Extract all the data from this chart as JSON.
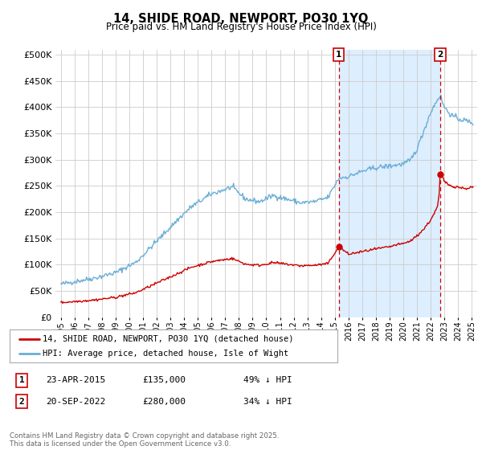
{
  "title": "14, SHIDE ROAD, NEWPORT, PO30 1YQ",
  "subtitle": "Price paid vs. HM Land Registry's House Price Index (HPI)",
  "hpi_color": "#6baed6",
  "price_color": "#cc0000",
  "dashed_line_color": "#cc0000",
  "shade_color": "#ddeeff",
  "background_color": "#ffffff",
  "grid_color": "#cccccc",
  "ylim_max": 500000,
  "yticks": [
    0,
    50000,
    100000,
    150000,
    200000,
    250000,
    300000,
    350000,
    400000,
    450000,
    500000
  ],
  "transaction1": {
    "date": "23-APR-2015",
    "price": 135000,
    "hpi_pct": "49% ↓ HPI",
    "year": 2015.3
  },
  "transaction2": {
    "date": "20-SEP-2022",
    "price": 280000,
    "hpi_pct": "34% ↓ HPI",
    "year": 2022.7
  },
  "legend_label1": "14, SHIDE ROAD, NEWPORT, PO30 1YQ (detached house)",
  "legend_label2": "HPI: Average price, detached house, Isle of Wight",
  "footer": "Contains HM Land Registry data © Crown copyright and database right 2025.\nThis data is licensed under the Open Government Licence v3.0."
}
